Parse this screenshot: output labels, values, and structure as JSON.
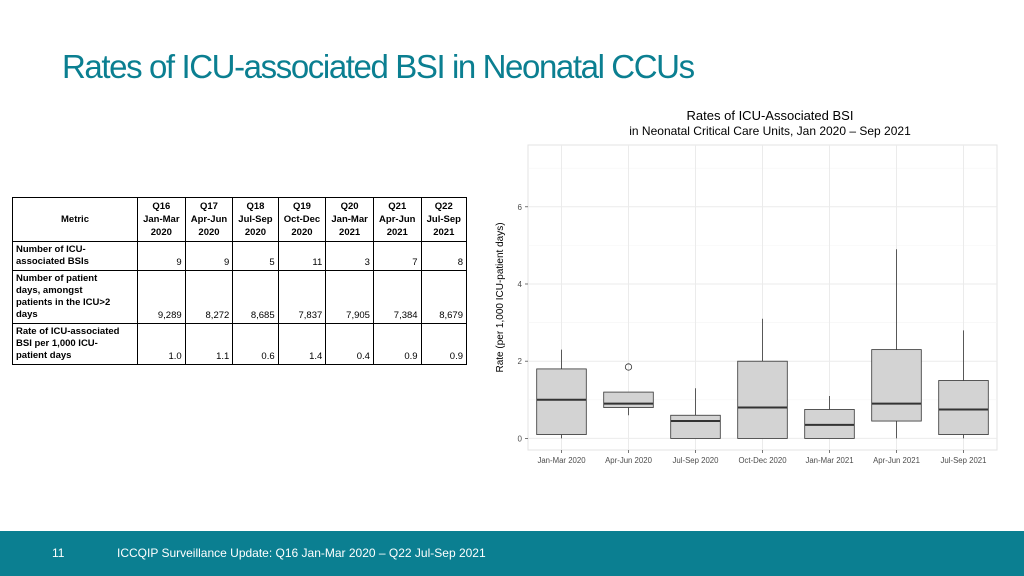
{
  "slide": {
    "title": "Rates of ICU-associated BSI in Neonatal CCUs",
    "page_number": "11",
    "footer": "ICCQIP Surveillance Update: Q16 Jan-Mar 2020 – Q22 Jul-Sep 2021",
    "accent_color": "#0b7f91"
  },
  "table": {
    "metric_header": "Metric",
    "columns": [
      [
        "Q16",
        "Jan-Mar",
        "2020"
      ],
      [
        "Q17",
        "Apr-Jun",
        "2020"
      ],
      [
        "Q18",
        "Jul-Sep",
        "2020"
      ],
      [
        "Q19",
        "Oct-Dec",
        "2020"
      ],
      [
        "Q20",
        "Jan-Mar",
        "2021"
      ],
      [
        "Q21",
        "Apr-Jun",
        "2021"
      ],
      [
        "Q22",
        "Jul-Sep",
        "2021"
      ]
    ],
    "rows": [
      {
        "label": [
          "Number of ICU-",
          "associated BSIs"
        ],
        "values": [
          "9",
          "9",
          "5",
          "11",
          "3",
          "7",
          "8"
        ]
      },
      {
        "label": [
          "Number of patient",
          "days, amongst",
          "patients in the ICU>2",
          "days"
        ],
        "values": [
          "9,289",
          "8,272",
          "8,685",
          "7,837",
          "7,905",
          "7,384",
          "8,679"
        ]
      },
      {
        "label": [
          "Rate of ICU-associated",
          "BSI per 1,000 ICU-",
          "patient days"
        ],
        "values": [
          "1.0",
          "1.1",
          "0.6",
          "1.4",
          "0.4",
          "0.9",
          "0.9"
        ]
      }
    ]
  },
  "chart_data": {
    "type": "box",
    "title": [
      "Rates of ICU-Associated BSI",
      "in Neonatal Critical Care Units, Jan 2020 – Sep 2021"
    ],
    "xlabel": "",
    "ylabel": "Rate (per 1,000 ICU-patient days)",
    "ylim": [
      -0.3,
      7.6
    ],
    "yticks": [
      0,
      2,
      4,
      6
    ],
    "grid": true,
    "categories": [
      "Jan-Mar 2020",
      "Apr-Jun 2020",
      "Jul-Sep 2020",
      "Oct-Dec 2020",
      "Jan-Mar 2021",
      "Apr-Jun 2021",
      "Jul-Sep 2021"
    ],
    "boxes": [
      {
        "min": 0.0,
        "q1": 0.1,
        "median": 1.0,
        "q3": 1.8,
        "max": 2.3,
        "outliers": []
      },
      {
        "min": 0.6,
        "q1": 0.8,
        "median": 0.9,
        "q3": 1.2,
        "max": 1.2,
        "outliers": [
          1.85
        ]
      },
      {
        "min": 0.0,
        "q1": 0.0,
        "median": 0.45,
        "q3": 0.6,
        "max": 1.3,
        "outliers": []
      },
      {
        "min": 0.0,
        "q1": 0.0,
        "median": 0.8,
        "q3": 2.0,
        "max": 3.1,
        "outliers": []
      },
      {
        "min": 0.0,
        "q1": 0.0,
        "median": 0.35,
        "q3": 0.75,
        "max": 1.1,
        "outliers": []
      },
      {
        "min": 0.0,
        "q1": 0.45,
        "median": 0.9,
        "q3": 2.3,
        "max": 4.9,
        "outliers": []
      },
      {
        "min": 0.0,
        "q1": 0.1,
        "median": 0.75,
        "q3": 1.5,
        "max": 2.8,
        "outliers": []
      }
    ],
    "colors": {
      "box_fill": "#d3d3d3",
      "box_stroke": "#333333",
      "panel": "#ffffff",
      "grid": "#ebebeb"
    }
  }
}
